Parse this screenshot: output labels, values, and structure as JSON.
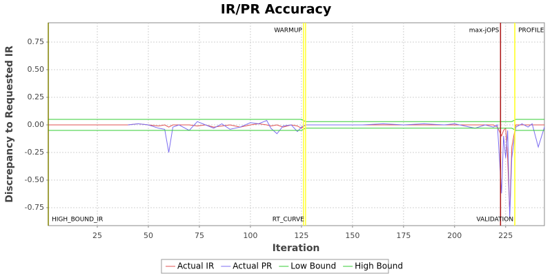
{
  "chart_data": {
    "type": "line",
    "title": "IR/PR Accuracy",
    "x_label": "Iteration",
    "y_label": "Discrepancy to Requested IR",
    "x": [
      1,
      10,
      20,
      30,
      40,
      45,
      50,
      55,
      58,
      60,
      62,
      65,
      70,
      74,
      78,
      82,
      86,
      90,
      95,
      100,
      104,
      108,
      110,
      113,
      116,
      120,
      123,
      125,
      127,
      135,
      145,
      155,
      165,
      175,
      185,
      195,
      200,
      205,
      210,
      215,
      219,
      221,
      223,
      224,
      225,
      226,
      227,
      228,
      230,
      233,
      236,
      238,
      241,
      244
    ],
    "series": [
      {
        "name": "Actual IR",
        "color": "#e05050",
        "values": [
          0,
          0,
          0,
          0,
          0,
          0.01,
          0,
          -0.01,
          0,
          -0.02,
          0,
          0,
          0,
          -0.01,
          0,
          -0.02,
          -0.01,
          0,
          -0.02,
          0,
          0.01,
          0,
          -0.01,
          0,
          -0.02,
          0,
          -0.01,
          -0.03,
          0,
          0,
          0,
          0,
          0,
          0,
          0,
          0,
          0,
          0,
          0,
          0,
          0,
          -0.02,
          -0.1,
          -0.05,
          -0.03,
          -0.3,
          -0.8,
          -0.2,
          0,
          0,
          0,
          0,
          0,
          0
        ]
      },
      {
        "name": "Actual PR",
        "color": "#7b6cf0",
        "values": [
          null,
          null,
          null,
          null,
          0,
          0.01,
          0,
          -0.03,
          -0.04,
          -0.25,
          -0.02,
          0,
          -0.05,
          0.03,
          0,
          -0.03,
          0.01,
          -0.04,
          -0.02,
          0.02,
          0.01,
          0.04,
          -0.03,
          -0.08,
          -0.01,
          0,
          -0.06,
          -0.02,
          0,
          0,
          0,
          0,
          0.01,
          0,
          0.01,
          0,
          0.01,
          -0.01,
          -0.03,
          0,
          -0.02,
          0,
          -0.62,
          -0.1,
          -0.3,
          -0.05,
          -0.85,
          -0.3,
          -0.02,
          0.01,
          -0.02,
          0.01,
          -0.2,
          -0.02
        ]
      },
      {
        "name": "Low Bound",
        "color": "#33cc33",
        "values": [
          -0.05,
          -0.05,
          -0.05,
          -0.05,
          -0.05,
          -0.05,
          -0.05,
          -0.05,
          -0.05,
          -0.05,
          -0.05,
          -0.05,
          -0.05,
          -0.05,
          -0.05,
          -0.05,
          -0.05,
          -0.05,
          -0.05,
          -0.05,
          -0.05,
          -0.05,
          -0.05,
          -0.05,
          -0.05,
          -0.05,
          -0.05,
          -0.05,
          -0.03,
          -0.03,
          -0.03,
          -0.03,
          -0.03,
          -0.03,
          -0.03,
          -0.03,
          -0.03,
          -0.03,
          -0.03,
          -0.03,
          -0.03,
          -0.03,
          -0.03,
          -0.03,
          -0.03,
          -0.03,
          -0.03,
          -0.03,
          -0.05,
          -0.05,
          -0.05,
          -0.05,
          -0.05,
          -0.05
        ]
      },
      {
        "name": "High Bound",
        "color": "#33cc33",
        "values": [
          0.05,
          0.05,
          0.05,
          0.05,
          0.05,
          0.05,
          0.05,
          0.05,
          0.05,
          0.05,
          0.05,
          0.05,
          0.05,
          0.05,
          0.05,
          0.05,
          0.05,
          0.05,
          0.05,
          0.05,
          0.05,
          0.05,
          0.05,
          0.05,
          0.05,
          0.05,
          0.05,
          0.05,
          0.03,
          0.03,
          0.03,
          0.03,
          0.03,
          0.03,
          0.03,
          0.03,
          0.03,
          0.03,
          0.03,
          0.03,
          0.03,
          0.03,
          0.03,
          0.03,
          0.03,
          0.03,
          0.03,
          0.03,
          0.05,
          0.05,
          0.05,
          0.05,
          0.05,
          0.05
        ]
      }
    ],
    "markers": [
      {
        "x": 1,
        "label": "HIGH_BOUND_IR",
        "color": "#808000",
        "label_position": "bottom",
        "label_side": "right"
      },
      {
        "x": 126,
        "label": "WARMUP",
        "color": "#ffff33",
        "label_position": "top",
        "label_side": "left"
      },
      {
        "x": 127,
        "label": "RT_CURVE",
        "color": "#ffff33",
        "label_position": "bottom",
        "label_side": "left"
      },
      {
        "x": 222.5,
        "label": "max-jOPS",
        "color": "#aa1111",
        "label_position": "top",
        "label_side": "left"
      },
      {
        "x": 229.5,
        "label": "VALIDATION",
        "color": "#ffff33",
        "label_position": "bottom",
        "label_side": "left"
      },
      {
        "x": 229.5,
        "label": "PROFILE",
        "color": "#ffff33",
        "label_position": "top",
        "label_side": "right"
      }
    ],
    "xlim": [
      1,
      244
    ],
    "ylim": [
      -0.9125,
      0.925
    ],
    "xticks": [
      25,
      50,
      75,
      100,
      125,
      150,
      175,
      200,
      225
    ],
    "yticks": [
      -0.75,
      {
        "value": -0.5,
        "label": "-0.50"
      },
      -0.25,
      {
        "value": 0,
        "label": "0.00"
      },
      0.25,
      {
        "value": 0.5,
        "label": "0.50"
      },
      0.75
    ],
    "grid": true
  }
}
